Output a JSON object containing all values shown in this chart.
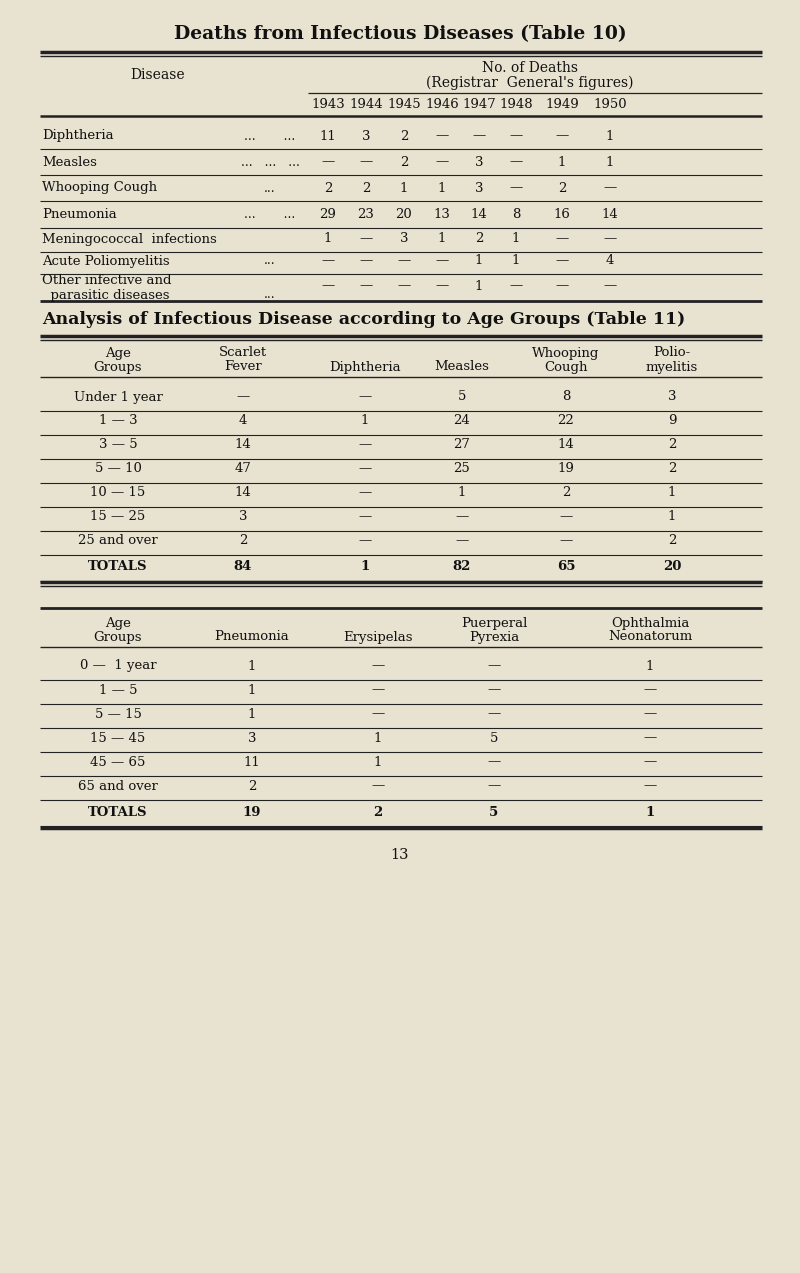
{
  "bg_color": "#e8e2d0",
  "title1": "Deaths from Infectious Diseases (Table 10)",
  "title2": "Analysis of Infectious Disease according to Age Groups (Table 11)",
  "page_number": "13",
  "table1": {
    "years": [
      "1943",
      "1944",
      "1945",
      "1946",
      "1947",
      "1948",
      "1949",
      "1950"
    ],
    "rows": [
      {
        "name": "Diphtheria",
        "dots": "...       ...",
        "values": [
          "11",
          "3",
          "2",
          "—",
          "—",
          "—",
          "—",
          "1"
        ]
      },
      {
        "name": "Measles",
        "dots": "...   ...   ...",
        "values": [
          "—",
          "—",
          "2",
          "—",
          "3",
          "—",
          "1",
          "1"
        ]
      },
      {
        "name": "Whooping Cough",
        "dots": "...",
        "values": [
          "2",
          "2",
          "1",
          "1",
          "3",
          "—",
          "2",
          "—"
        ]
      },
      {
        "name": "Pneumonia",
        "dots": "...       ...",
        "values": [
          "29",
          "23",
          "20",
          "13",
          "14",
          "8",
          "16",
          "14"
        ]
      },
      {
        "name": "Meningococcal  infections",
        "dots": "",
        "values": [
          "1",
          "—",
          "3",
          "1",
          "2",
          "1",
          "—",
          "—"
        ]
      },
      {
        "name": "Acute Poliomyelitis",
        "dots": "...",
        "values": [
          "—",
          "—",
          "—",
          "—",
          "1",
          "1",
          "—",
          "4"
        ]
      },
      {
        "name": "Other infective and",
        "name2": "  parasitic diseases",
        "dots": "...",
        "values": [
          "—",
          "—",
          "—",
          "—",
          "1",
          "—",
          "—",
          "—"
        ]
      }
    ]
  },
  "table2": {
    "col_headers_line1": [
      "Age",
      "Scarlet",
      "",
      "Whooping",
      "Polio-"
    ],
    "col_headers_line2": [
      "Groups",
      "Fever",
      "Diphtheria",
      "Measles",
      "Cough",
      "myelitis"
    ],
    "rows": [
      {
        "age": "Under 1 year",
        "values": [
          "—",
          "—",
          "5",
          "8",
          "3"
        ]
      },
      {
        "age": "1 — 3",
        "values": [
          "4",
          "1",
          "24",
          "22",
          "9"
        ]
      },
      {
        "age": "3 — 5",
        "values": [
          "14",
          "—",
          "27",
          "14",
          "2"
        ]
      },
      {
        "age": "5 — 10",
        "values": [
          "47",
          "—",
          "25",
          "19",
          "2"
        ]
      },
      {
        "age": "10 — 15",
        "values": [
          "14",
          "—",
          "1",
          "2",
          "1"
        ]
      },
      {
        "age": "15 — 25",
        "values": [
          "3",
          "—",
          "—",
          "—",
          "1"
        ]
      },
      {
        "age": "25 and over",
        "values": [
          "2",
          "—",
          "—",
          "—",
          "2"
        ]
      },
      {
        "age": "TOTALS",
        "values": [
          "84",
          "1",
          "82",
          "65",
          "20"
        ],
        "bold": true
      }
    ]
  },
  "table3": {
    "col_headers_line1": [
      "Age",
      "",
      "",
      "Puerperal",
      "Ophthalmia"
    ],
    "col_headers_line2": [
      "Groups",
      "Pneumonia",
      "Erysipelas",
      "Pyrexia",
      "Neonatorum"
    ],
    "rows": [
      {
        "age": "0 —  1 year",
        "values": [
          "1",
          "—",
          "—",
          "1"
        ]
      },
      {
        "age": "1 — 5",
        "values": [
          "1",
          "—",
          "—",
          "—"
        ]
      },
      {
        "age": "5 — 15",
        "values": [
          "1",
          "—",
          "—",
          "—"
        ]
      },
      {
        "age": "15 — 45",
        "values": [
          "3",
          "1",
          "5",
          "—"
        ]
      },
      {
        "age": "45 — 65",
        "values": [
          "11",
          "1",
          "—",
          "—"
        ]
      },
      {
        "age": "65 and over",
        "values": [
          "2",
          "—",
          "—",
          "—"
        ]
      },
      {
        "age": "TOTALS",
        "values": [
          "19",
          "2",
          "5",
          "1"
        ],
        "bold": true
      }
    ]
  }
}
